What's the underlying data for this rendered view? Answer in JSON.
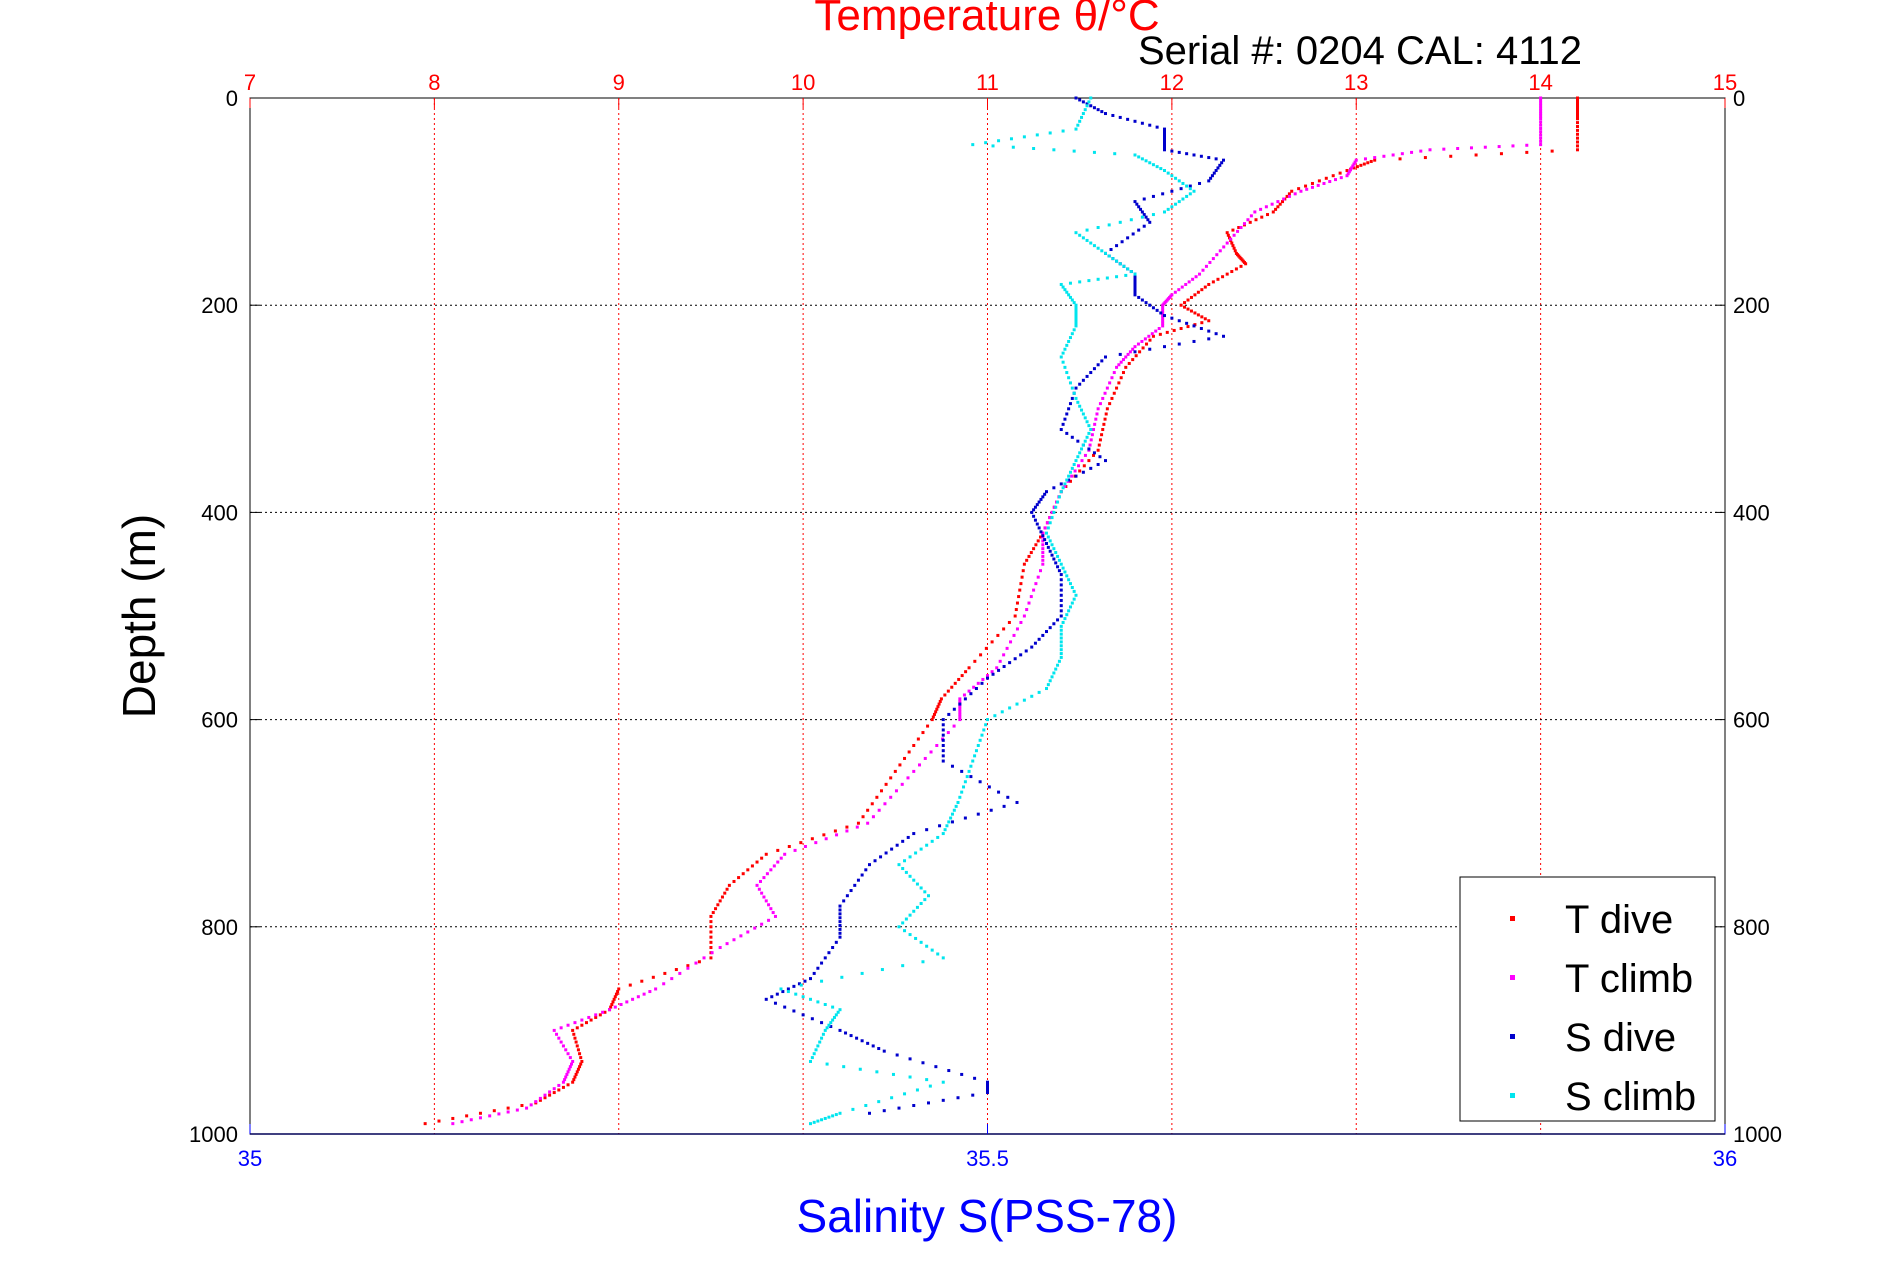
{
  "header": {
    "serial_text": "Serial #: 0204  CAL: 4112"
  },
  "colors": {
    "temperature_axis": "#ff0000",
    "salinity_axis": "#0000ff",
    "t_dive": "#ff0000",
    "t_climb": "#ff00ff",
    "s_dive": "#0000cc",
    "s_climb": "#00e5ee",
    "grid": "#000000"
  },
  "chart_data": {
    "type": "scatter",
    "title": "Temperature θ/°C",
    "xlabel_top": "Temperature θ/°C",
    "xlabel_bottom": "Salinity S(PSS-78)",
    "ylabel": "Depth (m)",
    "temperature_axis": {
      "range": [
        7,
        15
      ],
      "ticks": [
        7,
        8,
        9,
        10,
        11,
        12,
        13,
        14,
        15
      ]
    },
    "salinity_axis": {
      "range": [
        35,
        36
      ],
      "ticks": [
        35,
        35.5,
        36
      ]
    },
    "depth_axis": {
      "range": [
        0,
        1000
      ],
      "reversed": true,
      "ticks": [
        0,
        200,
        400,
        600,
        800,
        1000
      ]
    },
    "grid": true,
    "legend": {
      "position": "bottom-right",
      "entries": [
        "T dive",
        "T climb",
        "S dive",
        "S climb"
      ]
    },
    "series": [
      {
        "name": "T dive",
        "axis": "temperature",
        "depth": [
          0,
          20,
          50,
          60,
          70,
          90,
          110,
          130,
          150,
          160,
          180,
          200,
          215,
          230,
          260,
          300,
          340,
          380,
          420,
          450,
          500,
          550,
          580,
          600,
          650,
          700,
          730,
          760,
          790,
          830,
          860,
          880,
          900,
          930,
          950,
          970,
          990
        ],
        "values": [
          14.2,
          14.2,
          14.2,
          13.1,
          12.95,
          12.65,
          12.55,
          12.3,
          12.35,
          12.4,
          12.2,
          12.05,
          12.2,
          11.9,
          11.75,
          11.65,
          11.6,
          11.4,
          11.3,
          11.2,
          11.15,
          10.9,
          10.75,
          10.7,
          10.5,
          10.3,
          9.8,
          9.6,
          9.5,
          9.5,
          9.0,
          8.95,
          8.75,
          8.8,
          8.75,
          8.55,
          7.95
        ]
      },
      {
        "name": "T climb",
        "axis": "temperature",
        "depth": [
          0,
          20,
          45,
          50,
          60,
          75,
          90,
          110,
          140,
          170,
          190,
          200,
          220,
          240,
          260,
          300,
          340,
          380,
          420,
          450,
          500,
          550,
          580,
          600,
          650,
          700,
          730,
          760,
          790,
          820,
          860,
          880,
          900,
          930,
          950,
          975,
          990
        ],
        "values": [
          14.0,
          14.0,
          14.0,
          13.4,
          13.0,
          12.95,
          12.7,
          12.45,
          12.3,
          12.15,
          12.0,
          11.95,
          11.95,
          11.8,
          11.7,
          11.6,
          11.55,
          11.4,
          11.3,
          11.3,
          11.2,
          11.05,
          10.85,
          10.85,
          10.6,
          10.35,
          9.9,
          9.75,
          9.85,
          9.55,
          9.2,
          8.95,
          8.65,
          8.75,
          8.7,
          8.5,
          8.1
        ]
      },
      {
        "name": "S dive",
        "axis": "salinity",
        "depth": [
          0,
          15,
          30,
          50,
          60,
          80,
          100,
          120,
          150,
          170,
          190,
          210,
          230,
          250,
          280,
          320,
          350,
          380,
          400,
          430,
          460,
          500,
          530,
          560,
          600,
          640,
          680,
          710,
          740,
          780,
          810,
          850,
          870,
          900,
          920,
          950,
          960,
          980
        ],
        "values": [
          35.56,
          35.58,
          35.62,
          35.62,
          35.66,
          35.65,
          35.6,
          35.61,
          35.58,
          35.6,
          35.6,
          35.62,
          35.66,
          35.58,
          35.56,
          35.55,
          35.58,
          35.54,
          35.53,
          35.54,
          35.55,
          35.55,
          35.53,
          35.5,
          35.47,
          35.47,
          35.52,
          35.45,
          35.42,
          35.4,
          35.4,
          35.38,
          35.35,
          35.4,
          35.43,
          35.5,
          35.5,
          35.42
        ]
      },
      {
        "name": "S climb",
        "axis": "salinity",
        "depth": [
          0,
          30,
          45,
          55,
          70,
          90,
          110,
          130,
          150,
          170,
          180,
          200,
          220,
          250,
          290,
          320,
          350,
          380,
          420,
          450,
          480,
          510,
          540,
          570,
          600,
          640,
          680,
          710,
          740,
          770,
          800,
          830,
          860,
          880,
          900,
          930,
          950,
          980,
          990
        ],
        "values": [
          35.57,
          35.56,
          35.49,
          35.6,
          35.62,
          35.64,
          35.62,
          35.56,
          35.58,
          35.6,
          35.55,
          35.56,
          35.56,
          35.55,
          35.56,
          35.57,
          35.56,
          35.55,
          35.54,
          35.55,
          35.56,
          35.55,
          35.55,
          35.54,
          35.5,
          35.49,
          35.48,
          35.47,
          35.44,
          35.46,
          35.44,
          35.47,
          35.36,
          35.4,
          35.39,
          35.38,
          35.47,
          35.4,
          35.38
        ]
      }
    ]
  }
}
